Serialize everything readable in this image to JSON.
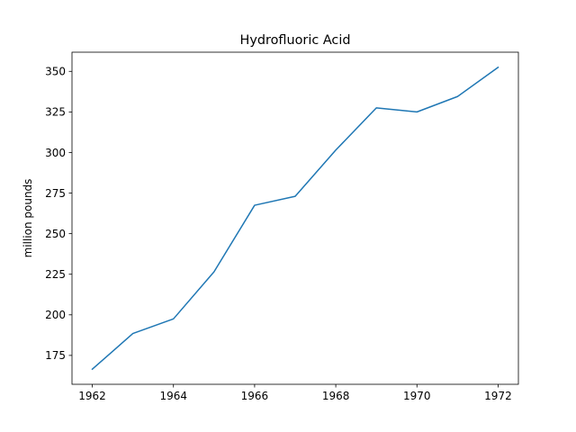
{
  "chart_data": {
    "type": "line",
    "title": "Hydrofluoric Acid",
    "xlabel": "",
    "ylabel": "million pounds",
    "x": [
      1962,
      1963,
      1964,
      1965,
      1966,
      1967,
      1968,
      1969,
      1970,
      1971,
      1972
    ],
    "series": [
      {
        "values": [
          166.5,
          188.5,
          197.5,
          226.5,
          267.5,
          273,
          301.5,
          327.5,
          325,
          334.5,
          352.5
        ],
        "color": "#1f77b4"
      }
    ],
    "xticks": [
      1962,
      1964,
      1966,
      1968,
      1970,
      1972
    ],
    "xtick_labels": [
      "1962",
      "1964",
      "1966",
      "1968",
      "1970",
      "1972"
    ],
    "yticks": [
      175,
      200,
      225,
      250,
      275,
      300,
      325,
      350
    ],
    "ytick_labels": [
      "175",
      "200",
      "225",
      "250",
      "275",
      "300",
      "325",
      "350"
    ],
    "xlim": [
      1961.5,
      1972.5
    ],
    "ylim": [
      157.2,
      361.8
    ],
    "grid": false,
    "legend": "none"
  }
}
